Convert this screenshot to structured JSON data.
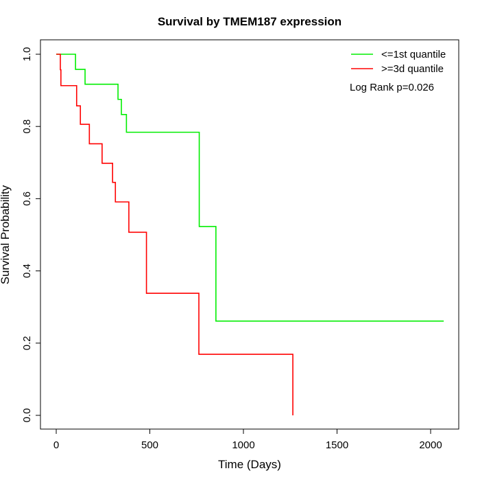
{
  "chart_data": {
    "type": "line",
    "subtype": "kaplan-meier step",
    "title": "Survival by TMEM187 expression",
    "xlabel": "Time (Days)",
    "ylabel": "Survival Probability",
    "xlim": [
      0,
      2070
    ],
    "ylim": [
      0,
      1
    ],
    "xticks": [
      0,
      500,
      1000,
      1500,
      2000
    ],
    "yticks": [
      0.0,
      0.2,
      0.4,
      0.6,
      0.8,
      1.0
    ],
    "ytick_labels": [
      "0.0",
      "0.2",
      "0.4",
      "0.6",
      "0.8",
      "1.0"
    ],
    "legend_position": "top-right",
    "annotation": "Log Rank p=0.026",
    "series": [
      {
        "name": "<=1st quantile",
        "color": "#00ee00",
        "times": [
          0,
          103,
          154,
          330,
          348,
          375,
          764,
          853
        ],
        "survival": [
          1.0,
          0.958,
          0.917,
          0.875,
          0.833,
          0.784,
          0.523,
          0.261
        ],
        "end_time": 2070
      },
      {
        "name": ">=3d quantile",
        "color": "#ff0000",
        "times": [
          0,
          22,
          25,
          109,
          129,
          177,
          245,
          301,
          316,
          388,
          482,
          762,
          1264
        ],
        "survival": [
          1.0,
          0.957,
          0.913,
          0.857,
          0.806,
          0.752,
          0.698,
          0.645,
          0.591,
          0.507,
          0.338,
          0.169,
          0.0
        ],
        "end_time": 1264
      }
    ]
  }
}
